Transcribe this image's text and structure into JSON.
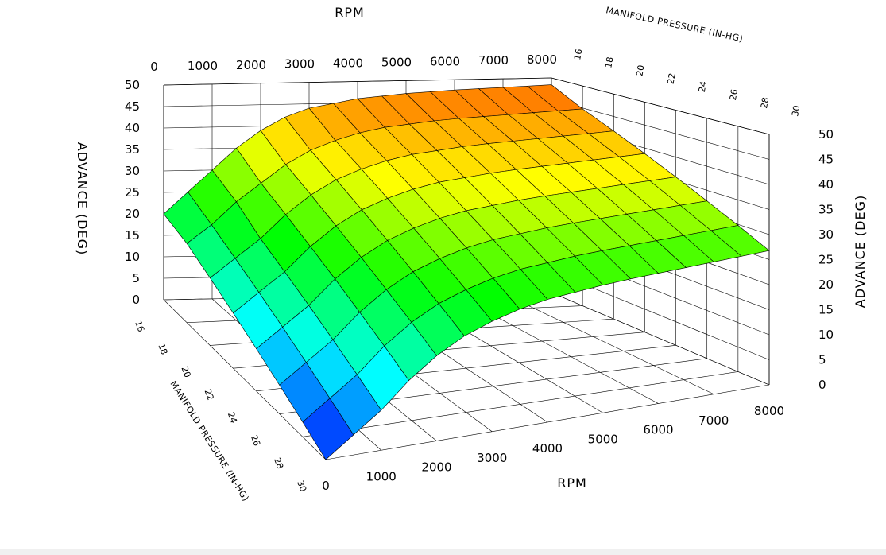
{
  "chart_data": {
    "type": "surface",
    "title": "",
    "x_axis": {
      "label": "RPM",
      "ticks": [
        0,
        1000,
        2000,
        3000,
        4000,
        5000,
        6000,
        7000,
        8000
      ],
      "range": [
        0,
        8000
      ]
    },
    "y_axis": {
      "label": "MANIFOLD PRESSURE (IN-HG)",
      "ticks": [
        16,
        18,
        20,
        22,
        24,
        26,
        28,
        30
      ],
      "range": [
        16,
        30
      ]
    },
    "z_axis": {
      "label": "ADVANCE (DEG)",
      "ticks": [
        0,
        5,
        10,
        15,
        20,
        25,
        30,
        35,
        40,
        45,
        50
      ],
      "range": [
        0,
        50
      ]
    },
    "rpm_grid": [
      0,
      500,
      1000,
      1500,
      2000,
      2500,
      3000,
      3500,
      4000,
      4500,
      5000,
      5500,
      6000,
      6500,
      7000,
      7500,
      8000
    ],
    "pressure_grid": [
      16,
      18,
      20,
      22,
      24,
      26,
      28,
      30
    ],
    "advance": [
      [
        20,
        25,
        30,
        35,
        39,
        42,
        44,
        45,
        46,
        46.5,
        47,
        47.3,
        47.6,
        47.8,
        48,
        48.2,
        48.4
      ],
      [
        18,
        22,
        27,
        31,
        35,
        38,
        40,
        41.5,
        42.5,
        43,
        43.5,
        43.8,
        44,
        44.2,
        44.4,
        44.6,
        44.8
      ],
      [
        15,
        19,
        23,
        28,
        32,
        35,
        37,
        38.5,
        39.5,
        40,
        40.5,
        40.8,
        41,
        41.2,
        41.4,
        41.6,
        41.8
      ],
      [
        12,
        16,
        20,
        25,
        29,
        32,
        34,
        35.5,
        36.5,
        37,
        37.5,
        37.8,
        38,
        38.2,
        38.4,
        38.6,
        38.8
      ],
      [
        9,
        13,
        17,
        22,
        26,
        29,
        31,
        32.5,
        33.5,
        34,
        34.5,
        34.8,
        35,
        35.2,
        35.4,
        35.6,
        35.8
      ],
      [
        6,
        10,
        14,
        19,
        23,
        26,
        28,
        29.5,
        30.5,
        31,
        31.5,
        31.8,
        32,
        32.2,
        32.4,
        32.6,
        32.8
      ],
      [
        3,
        7,
        11,
        16,
        20,
        23,
        25,
        26.5,
        27.5,
        28,
        28.5,
        28.8,
        29,
        29.2,
        29.4,
        29.6,
        29.8
      ],
      [
        0,
        4,
        8,
        13,
        17,
        20,
        22,
        23.5,
        24.5,
        25,
        25.5,
        25.8,
        26,
        26.2,
        26.4,
        26.6,
        26.8
      ]
    ],
    "colormap": [
      "#0000ff",
      "#00ffff",
      "#00ff00",
      "#ffff00",
      "#ff6600"
    ],
    "grid": true,
    "legend": "none"
  }
}
